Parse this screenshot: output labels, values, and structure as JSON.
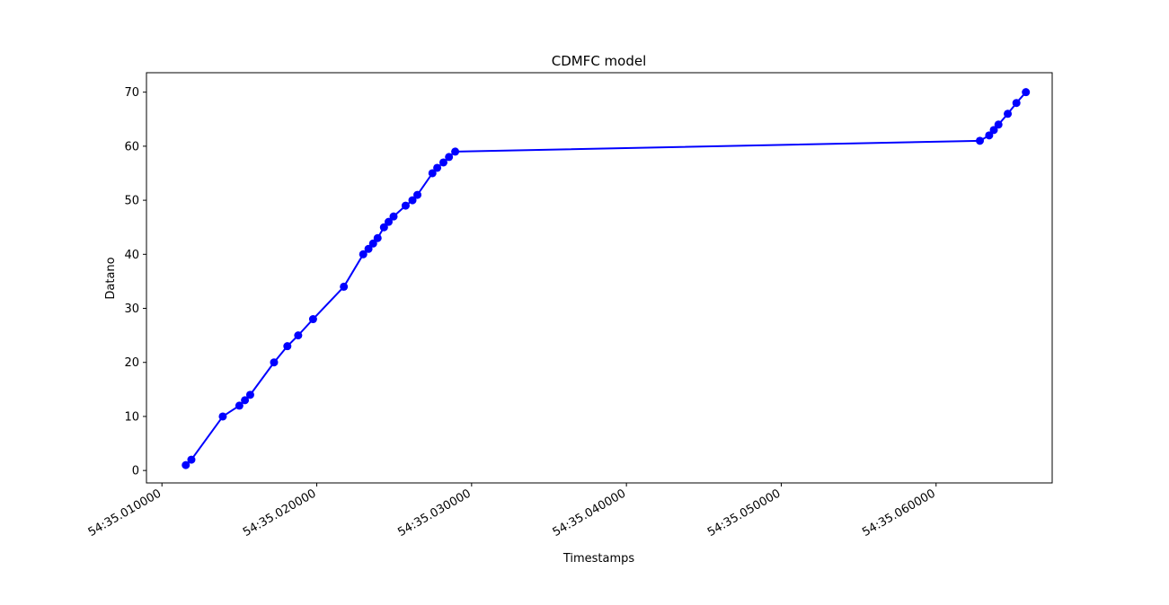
{
  "chart_data": {
    "type": "line",
    "title": "CDMFC model",
    "xlabel": "Timestamps",
    "ylabel": "Datano",
    "x_unit": "seconds",
    "xlim": [
      0.009,
      0.0675
    ],
    "ylim": [
      -2.3,
      73.6
    ],
    "grid": false,
    "legend": false,
    "color": "#0000ff",
    "marker": "circle",
    "x_ticks": [
      {
        "value": 0.01,
        "label": "54:35.010000"
      },
      {
        "value": 0.02,
        "label": "54:35.020000"
      },
      {
        "value": 0.03,
        "label": "54:35.030000"
      },
      {
        "value": 0.04,
        "label": "54:35.040000"
      },
      {
        "value": 0.05,
        "label": "54:35.050000"
      },
      {
        "value": 0.06,
        "label": "54:35.060000"
      }
    ],
    "y_ticks": [
      0,
      10,
      20,
      30,
      40,
      50,
      60,
      70
    ],
    "series": [
      {
        "x": [
          0.01154,
          0.0119,
          0.01393,
          0.015,
          0.01536,
          0.0157,
          0.01724,
          0.0181,
          0.0188,
          0.01976,
          0.02175,
          0.023,
          0.02334,
          0.02364,
          0.02393,
          0.02434,
          0.02464,
          0.02496,
          0.02574,
          0.02618,
          0.0265,
          0.02747,
          0.02778,
          0.02818,
          0.02854,
          0.02894,
          0.06283,
          0.06343,
          0.06373,
          0.06403,
          0.06463,
          0.06519,
          0.0658
        ],
        "y": [
          1,
          2,
          10,
          12,
          13,
          14,
          20,
          23,
          25,
          28,
          34,
          40,
          41,
          42,
          43,
          45,
          46,
          47,
          49,
          50,
          51,
          55,
          56,
          57,
          58,
          59,
          61,
          62,
          63,
          64,
          66,
          68,
          70
        ]
      }
    ]
  }
}
